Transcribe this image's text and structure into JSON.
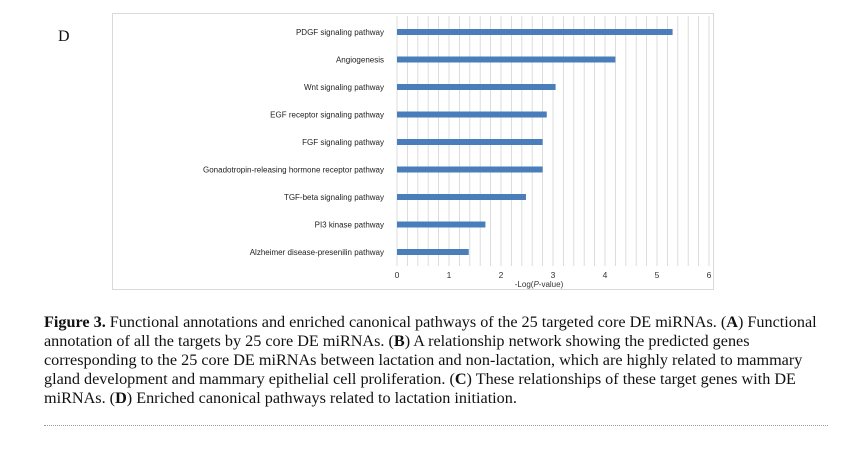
{
  "panel_label": "D",
  "chart_data": {
    "type": "bar",
    "orientation": "horizontal",
    "categories": [
      "PDGF signaling pathway",
      "Angiogenesis",
      "Wnt signaling pathway",
      "EGF receptor signaling pathway",
      "FGF signaling pathway",
      "Gonadotropin-releasing hormone receptor pathway",
      "TGF-beta signaling pathway",
      "PI3 kinase pathway",
      "Alzheimer disease-presenilin pathway"
    ],
    "values": [
      5.3,
      4.2,
      3.05,
      2.88,
      2.8,
      2.8,
      2.48,
      1.7,
      1.38
    ],
    "xlabel_pre": "-Log(",
    "xlabel_italic": "P",
    "xlabel_post": "-value)",
    "xlim": [
      0,
      6
    ],
    "xticks": [
      "0",
      "1",
      "2",
      "3",
      "4",
      "5",
      "6"
    ],
    "grid": true,
    "bar_color": "#4a7ebb"
  },
  "caption": {
    "label": "Figure 3.",
    "parts": [
      {
        "t": " Functional annotations and enriched canonical pathways of the 25 targeted core DE miRNAs. (",
        "b": false
      },
      {
        "t": "A",
        "b": true
      },
      {
        "t": ") Functional annotation of all the targets by 25 core DE miRNAs. (",
        "b": false
      },
      {
        "t": "B",
        "b": true
      },
      {
        "t": ") A relationship network showing the predicted genes corresponding to the 25 core DE miRNAs between lactation and non-lactation, which are highly related to mammary gland development and mammary epithelial cell proliferation. (",
        "b": false
      },
      {
        "t": "C",
        "b": true
      },
      {
        "t": ") These relationships of these target genes with DE miRNAs. (",
        "b": false
      },
      {
        "t": "D",
        "b": true
      },
      {
        "t": ") Enriched canonical pathways related to lactation initiation.",
        "b": false
      }
    ]
  }
}
